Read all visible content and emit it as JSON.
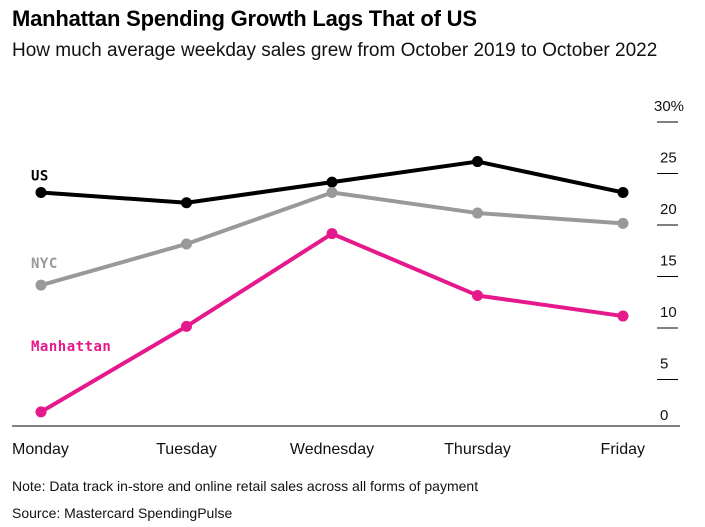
{
  "title": "Manhattan Spending Growth Lags That of US",
  "subtitle": "How much average weekday sales grew from October 2019 to October 2022",
  "note": "Note: Data track in-store and online retail sales across all forms of payment",
  "source": "Source: Mastercard SpendingPulse",
  "chart_data": {
    "type": "line",
    "title": "Manhattan Spending Growth Lags That of US",
    "categories": [
      "Monday",
      "Tuesday",
      "Wednesday",
      "Thursday",
      "Friday"
    ],
    "ylim": [
      0,
      30
    ],
    "yticks": [
      0,
      5,
      10,
      15,
      20,
      25,
      30
    ],
    "ytick_labels": [
      "0",
      "5",
      "10",
      "15",
      "20",
      "25",
      "30%"
    ],
    "grid": false,
    "series": [
      {
        "name": "US",
        "color": "#000000",
        "values": [
          21.8,
          20.8,
          22.8,
          24.8,
          21.8
        ]
      },
      {
        "name": "NYC",
        "color": "#999999",
        "values": [
          12.8,
          16.8,
          21.8,
          19.8,
          18.8
        ]
      },
      {
        "name": "Manhattan",
        "color": "#e6198c",
        "values": [
          0.5,
          8.8,
          17.8,
          11.8,
          9.8
        ]
      }
    ]
  }
}
